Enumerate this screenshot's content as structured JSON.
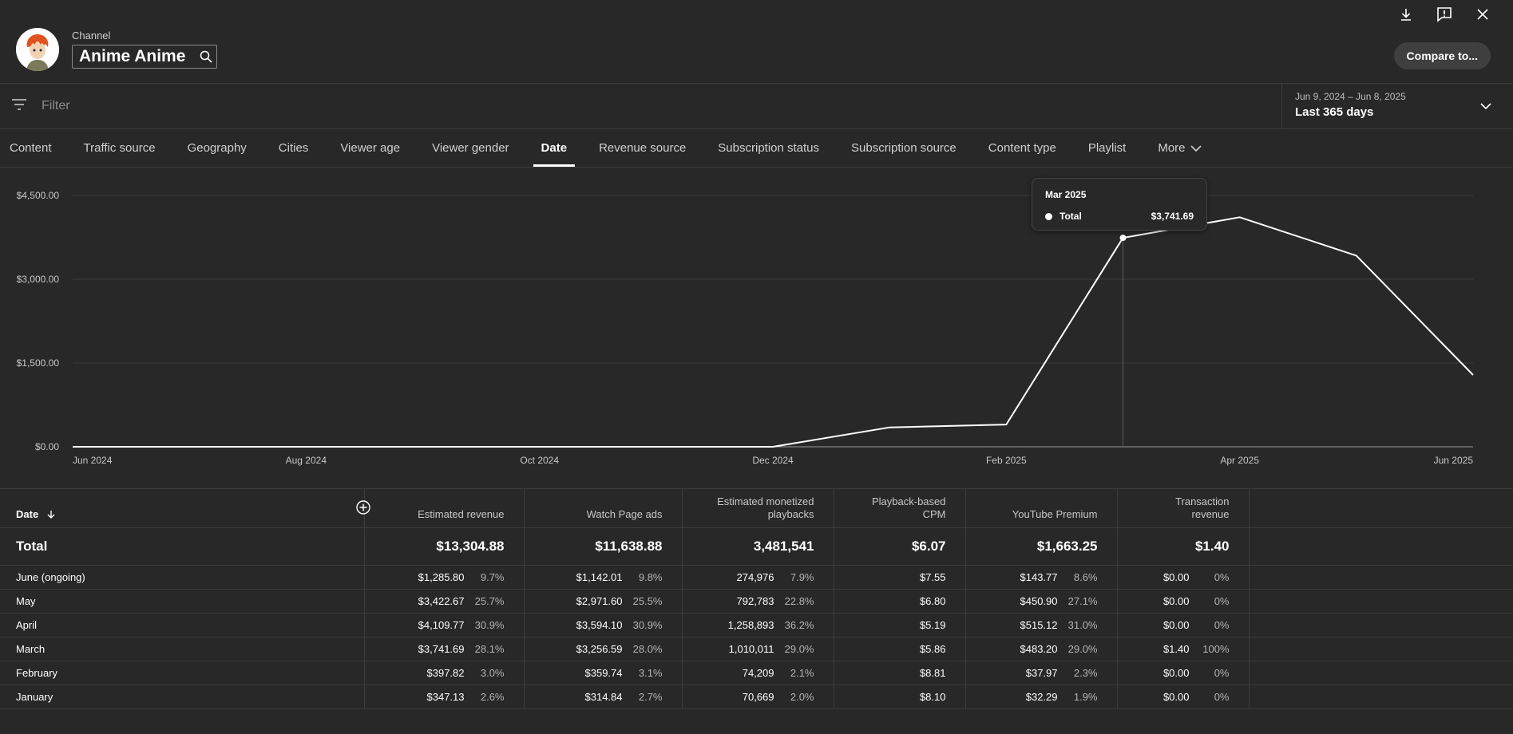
{
  "header": {
    "channel_label": "Channel",
    "channel_name": "Anime Anime",
    "compare_button": "Compare to...",
    "icons": [
      "download-icon",
      "feedback-icon",
      "close-icon",
      "search-icon"
    ]
  },
  "filter": {
    "placeholder": "Filter"
  },
  "date_range": {
    "range": "Jun 9, 2024 – Jun 8, 2025",
    "label": "Last 365 days"
  },
  "tabs": [
    {
      "label": "Content"
    },
    {
      "label": "Traffic source"
    },
    {
      "label": "Geography"
    },
    {
      "label": "Cities"
    },
    {
      "label": "Viewer age"
    },
    {
      "label": "Viewer gender"
    },
    {
      "label": "Date",
      "active": true
    },
    {
      "label": "Revenue source"
    },
    {
      "label": "Subscription status"
    },
    {
      "label": "Subscription source"
    },
    {
      "label": "Content type"
    },
    {
      "label": "Playlist"
    },
    {
      "label": "More"
    }
  ],
  "chart_data": {
    "type": "line",
    "x": [
      "Jun 2024",
      "Jul 2024",
      "Aug 2024",
      "Sep 2024",
      "Oct 2024",
      "Nov 2024",
      "Dec 2024",
      "Jan 2025",
      "Feb 2025",
      "Mar 2025",
      "Apr 2025",
      "May 2025",
      "Jun 2025"
    ],
    "x_ticks": [
      "Jun 2024",
      "Aug 2024",
      "Oct 2024",
      "Dec 2024",
      "Feb 2025",
      "Apr 2025",
      "Jun 2025"
    ],
    "series": [
      {
        "values": [
          0,
          0,
          0,
          0,
          0,
          0,
          0,
          347.13,
          397.82,
          3741.69,
          4109.77,
          3422.67,
          1285.8
        ]
      }
    ],
    "y_ticks": [
      "$0.00",
      "$1,500.00",
      "$3,000.00",
      "$4,500.00"
    ],
    "ylim": [
      0,
      4500
    ],
    "grid": true,
    "line_color": "#ffffff",
    "highlight_index": 9
  },
  "tooltip": {
    "title": "Mar 2025",
    "series": "Total",
    "value": "$3,741.69"
  },
  "table": {
    "columns": [
      {
        "label": "Date"
      },
      {
        "label": "Estimated revenue"
      },
      {
        "label": "Watch Page ads"
      },
      {
        "label": "Estimated monetized playbacks"
      },
      {
        "label": "Playback-based CPM"
      },
      {
        "label": "YouTube Premium"
      },
      {
        "label": "Transaction revenue"
      }
    ],
    "total": {
      "label": "Total",
      "values": [
        "$13,304.88",
        "$11,638.88",
        "3,481,541",
        "$6.07",
        "$1,663.25",
        "$1.40"
      ]
    },
    "rows": [
      {
        "label": "June (ongoing)",
        "revenue": "$1,285.80",
        "revenue_pct": "9.7%",
        "watch": "$1,142.01",
        "watch_pct": "9.8%",
        "playbacks": "274,976",
        "playbacks_pct": "7.9%",
        "cpm": "$7.55",
        "premium": "$143.77",
        "premium_pct": "8.6%",
        "transaction": "$0.00",
        "transaction_pct": "0%"
      },
      {
        "label": "May",
        "revenue": "$3,422.67",
        "revenue_pct": "25.7%",
        "watch": "$2,971.60",
        "watch_pct": "25.5%",
        "playbacks": "792,783",
        "playbacks_pct": "22.8%",
        "cpm": "$6.80",
        "premium": "$450.90",
        "premium_pct": "27.1%",
        "transaction": "$0.00",
        "transaction_pct": "0%"
      },
      {
        "label": "April",
        "revenue": "$4,109.77",
        "revenue_pct": "30.9%",
        "watch": "$3,594.10",
        "watch_pct": "30.9%",
        "playbacks": "1,258,893",
        "playbacks_pct": "36.2%",
        "cpm": "$5.19",
        "premium": "$515.12",
        "premium_pct": "31.0%",
        "transaction": "$0.00",
        "transaction_pct": "0%"
      },
      {
        "label": "March",
        "revenue": "$3,741.69",
        "revenue_pct": "28.1%",
        "watch": "$3,256.59",
        "watch_pct": "28.0%",
        "playbacks": "1,010,011",
        "playbacks_pct": "29.0%",
        "cpm": "$5.86",
        "premium": "$483.20",
        "premium_pct": "29.0%",
        "transaction": "$1.40",
        "transaction_pct": "100%"
      },
      {
        "label": "February",
        "revenue": "$397.82",
        "revenue_pct": "3.0%",
        "watch": "$359.74",
        "watch_pct": "3.1%",
        "playbacks": "74,209",
        "playbacks_pct": "2.1%",
        "cpm": "$8.81",
        "premium": "$37.97",
        "premium_pct": "2.3%",
        "transaction": "$0.00",
        "transaction_pct": "0%"
      },
      {
        "label": "January",
        "revenue": "$347.13",
        "revenue_pct": "2.6%",
        "watch": "$314.84",
        "watch_pct": "2.7%",
        "playbacks": "70,669",
        "playbacks_pct": "2.0%",
        "cpm": "$8.10",
        "premium": "$32.29",
        "premium_pct": "1.9%",
        "transaction": "$0.00",
        "transaction_pct": "0%"
      }
    ]
  }
}
